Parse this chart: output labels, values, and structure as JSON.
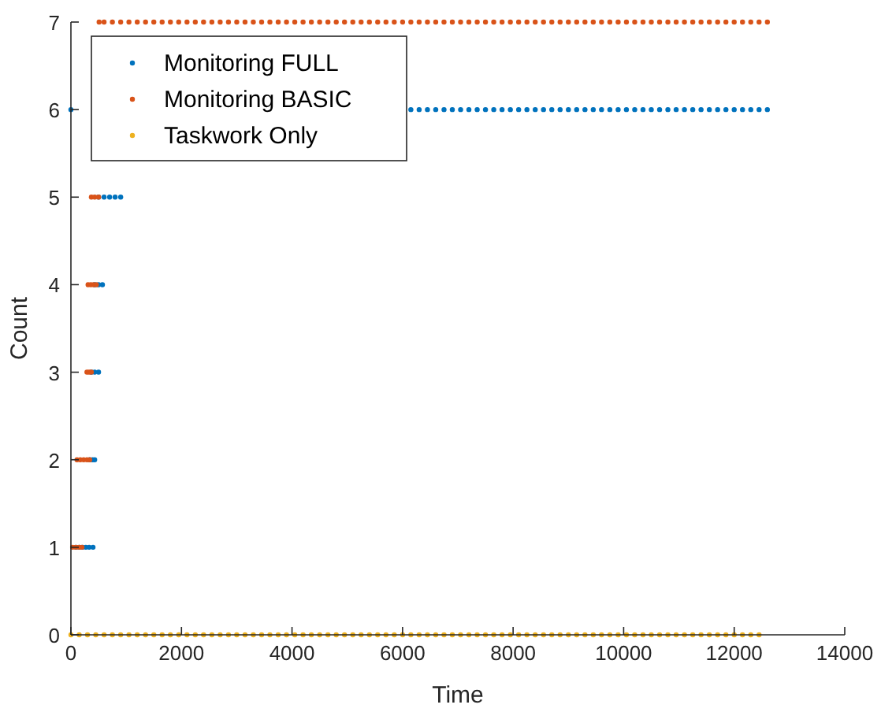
{
  "chart_data": {
    "type": "scatter",
    "xlabel": "Time",
    "ylabel": "Count",
    "xlim": [
      0,
      14000
    ],
    "ylim": [
      0,
      7
    ],
    "xticks": [
      0,
      2000,
      4000,
      6000,
      8000,
      10000,
      12000,
      14000
    ],
    "yticks": [
      0,
      1,
      2,
      3,
      4,
      5,
      6,
      7
    ],
    "grid": false,
    "legend": "top left",
    "marker": "circle",
    "series": [
      {
        "name": "Monitoring FULL",
        "color": "#0072bd",
        "x": [
          0,
          90,
          150,
          210,
          270,
          330,
          400,
          340,
          390,
          430,
          370,
          430,
          500,
          430,
          500,
          570,
          500,
          600,
          700,
          800,
          900,
          6150,
          6300,
          6450,
          6600,
          6750,
          6900,
          7050,
          7200,
          7350,
          7500,
          7650,
          7800,
          7950,
          8100,
          8250,
          8400,
          8550,
          8700,
          8850,
          9000,
          9150,
          9300,
          9450,
          9600,
          9750,
          9900,
          10050,
          10200,
          10350,
          10500,
          10650,
          10800,
          10950,
          11100,
          11250,
          11400,
          11550,
          11700,
          11850,
          12000,
          12150,
          12300,
          12450,
          12600
        ],
        "values": [
          6,
          1,
          1,
          1,
          1,
          1,
          1,
          2,
          2,
          2,
          3,
          3,
          3,
          4,
          4,
          4,
          5,
          5,
          5,
          5,
          5,
          6,
          6,
          6,
          6,
          6,
          6,
          6,
          6,
          6,
          6,
          6,
          6,
          6,
          6,
          6,
          6,
          6,
          6,
          6,
          6,
          6,
          6,
          6,
          6,
          6,
          6,
          6,
          6,
          6,
          6,
          6,
          6,
          6,
          6,
          6,
          6,
          6,
          6,
          6,
          6,
          6,
          6,
          6,
          6
        ]
      },
      {
        "name": "Monitoring BASIC",
        "color": "#d95319",
        "x": [
          30,
          90,
          150,
          200,
          110,
          170,
          230,
          290,
          340,
          290,
          330,
          370,
          310,
          360,
          410,
          460,
          370,
          430,
          500,
          510,
          600,
          750,
          900,
          1050,
          1200,
          1350,
          1500,
          1650,
          1800,
          1950,
          2100,
          2250,
          2400,
          2550,
          2700,
          2850,
          3000,
          3150,
          3300,
          3450,
          3600,
          3750,
          3900,
          4050,
          4200,
          4350,
          4500,
          4650,
          4800,
          4950,
          5100,
          5250,
          5400,
          5550,
          5700,
          5850,
          6000,
          6150,
          6300,
          6450,
          6600,
          6750,
          6900,
          7050,
          7200,
          7350,
          7500,
          7650,
          7800,
          7950,
          8100,
          8250,
          8400,
          8550,
          8700,
          8850,
          9000,
          9150,
          9300,
          9450,
          9600,
          9750,
          9900,
          10050,
          10200,
          10350,
          10500,
          10650,
          10800,
          10950,
          11100,
          11250,
          11400,
          11550,
          11700,
          11850,
          12000,
          12150,
          12300,
          12450,
          12600
        ],
        "values": [
          1,
          1,
          1,
          1,
          2,
          2,
          2,
          2,
          2,
          3,
          3,
          3,
          4,
          4,
          4,
          4,
          5,
          5,
          5,
          7,
          7,
          7,
          7,
          7,
          7,
          7,
          7,
          7,
          7,
          7,
          7,
          7,
          7,
          7,
          7,
          7,
          7,
          7,
          7,
          7,
          7,
          7,
          7,
          7,
          7,
          7,
          7,
          7,
          7,
          7,
          7,
          7,
          7,
          7,
          7,
          7,
          7,
          7,
          7,
          7,
          7,
          7,
          7,
          7,
          7,
          7,
          7,
          7,
          7,
          7,
          7,
          7,
          7,
          7,
          7,
          7,
          7,
          7,
          7,
          7,
          7,
          7,
          7,
          7,
          7,
          7,
          7,
          7,
          7,
          7,
          7,
          7,
          7,
          7,
          7,
          7,
          7,
          7,
          7,
          7,
          7
        ]
      },
      {
        "name": "Taskwork Only",
        "color": "#edb120",
        "x": [
          0,
          150,
          300,
          450,
          600,
          750,
          900,
          1050,
          1200,
          1350,
          1500,
          1650,
          1800,
          1950,
          2100,
          2250,
          2400,
          2550,
          2700,
          2850,
          3000,
          3150,
          3300,
          3450,
          3600,
          3750,
          3900,
          4050,
          4200,
          4350,
          4500,
          4650,
          4800,
          4950,
          5100,
          5250,
          5400,
          5550,
          5700,
          5850,
          6000,
          6150,
          6300,
          6450,
          6600,
          6750,
          6900,
          7050,
          7200,
          7350,
          7500,
          7650,
          7800,
          7950,
          8100,
          8250,
          8400,
          8550,
          8700,
          8850,
          9000,
          9150,
          9300,
          9450,
          9600,
          9750,
          9900,
          10050,
          10200,
          10350,
          10500,
          10650,
          10800,
          10950,
          11100,
          11250,
          11400,
          11550,
          11700,
          11850,
          12000,
          12150,
          12300,
          12450
        ],
        "values": [
          0,
          0,
          0,
          0,
          0,
          0,
          0,
          0,
          0,
          0,
          0,
          0,
          0,
          0,
          0,
          0,
          0,
          0,
          0,
          0,
          0,
          0,
          0,
          0,
          0,
          0,
          0,
          0,
          0,
          0,
          0,
          0,
          0,
          0,
          0,
          0,
          0,
          0,
          0,
          0,
          0,
          0,
          0,
          0,
          0,
          0,
          0,
          0,
          0,
          0,
          0,
          0,
          0,
          0,
          0,
          0,
          0,
          0,
          0,
          0,
          0,
          0,
          0,
          0,
          0,
          0,
          0,
          0,
          0,
          0,
          0,
          0,
          0,
          0,
          0,
          0,
          0,
          0,
          0,
          0,
          0,
          0,
          0,
          0
        ]
      }
    ]
  }
}
